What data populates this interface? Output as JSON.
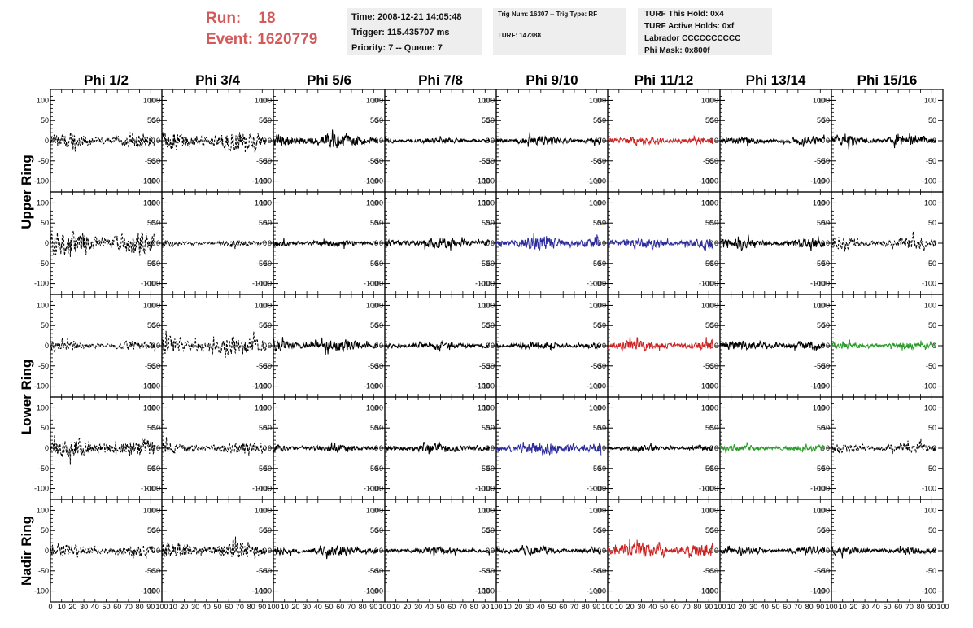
{
  "header": {
    "run_label": "Run:",
    "run_value": "18",
    "event_label": "Event:",
    "event_value": "1620779",
    "run_color": "#d45a5a"
  },
  "info": {
    "time": "Time: 2008-12-21 14:05:48",
    "trigger": "Trigger: 115.435707 ms",
    "priority": "Priority: 7 -- Queue: 7",
    "trig_num": "Trig Num: 16307 -- Trig Type: RF",
    "turf": "TURF: 147388",
    "turf_hold": "TURF This Hold: 0x4",
    "turf_active": "TURF Active Holds: 0xf",
    "labrador": "Labrador CCCCCCCCCC",
    "phi_mask": "Phi Mask: 0x800f"
  },
  "chart_data": {
    "type": "line",
    "columns": [
      "Phi 1/2",
      "Phi 3/4",
      "Phi 5/6",
      "Phi 7/8",
      "Phi 9/10",
      "Phi 11/12",
      "Phi 13/14",
      "Phi 15/16"
    ],
    "row_labels": [
      {
        "label": "Upper Ring",
        "rows": [
          0,
          1
        ]
      },
      {
        "label": "Lower Ring",
        "rows": [
          2,
          3
        ]
      },
      {
        "label": "Nadir Ring",
        "rows": [
          4
        ]
      }
    ],
    "ylim": [
      -115,
      115
    ],
    "xlim": [
      0,
      100
    ],
    "y_ticks": [
      -100,
      -50,
      0,
      50,
      100
    ],
    "x_ticks_first": [
      0,
      10,
      20,
      30,
      40,
      50,
      60,
      70,
      80,
      90,
      100
    ],
    "x_ticks_other": [
      10,
      20,
      30,
      40,
      50,
      60,
      70,
      80,
      90,
      100
    ],
    "waveform_x_range": [
      0,
      94
    ],
    "samples": 260,
    "colors": {
      "black": "#000000",
      "red": "#cc2222",
      "blue": "#2a2a9a",
      "green": "#2a9a2a"
    },
    "panels": [
      [
        {
          "c": "black",
          "s": "dashed",
          "a": 24
        },
        {
          "c": "black",
          "s": "dashed",
          "a": 32
        },
        {
          "c": "black",
          "s": "solid",
          "a": 24
        },
        {
          "c": "black",
          "s": "solid",
          "a": 10
        },
        {
          "c": "black",
          "s": "solid",
          "a": 15
        },
        {
          "c": "red",
          "s": "solid",
          "a": 13
        },
        {
          "c": "black",
          "s": "solid",
          "a": 13
        },
        {
          "c": "black",
          "s": "solid",
          "a": 16
        }
      ],
      [
        {
          "c": "black",
          "s": "dashed",
          "a": 40
        },
        {
          "c": "black",
          "s": "dashed",
          "a": 10
        },
        {
          "c": "black",
          "s": "solid",
          "a": 12
        },
        {
          "c": "black",
          "s": "solid",
          "a": 18
        },
        {
          "c": "blue",
          "s": "solid",
          "a": 22
        },
        {
          "c": "blue",
          "s": "solid",
          "a": 18
        },
        {
          "c": "black",
          "s": "solid",
          "a": 16
        },
        {
          "c": "black",
          "s": "dashed",
          "a": 20
        }
      ],
      [
        {
          "c": "black",
          "s": "dashed",
          "a": 15
        },
        {
          "c": "black",
          "s": "dashed",
          "a": 30
        },
        {
          "c": "black",
          "s": "solid",
          "a": 20
        },
        {
          "c": "black",
          "s": "solid",
          "a": 13
        },
        {
          "c": "black",
          "s": "solid",
          "a": 13
        },
        {
          "c": "red",
          "s": "solid",
          "a": 18
        },
        {
          "c": "black",
          "s": "solid",
          "a": 15
        },
        {
          "c": "green",
          "s": "solid",
          "a": 12
        }
      ],
      [
        {
          "c": "black",
          "s": "dashed",
          "a": 32
        },
        {
          "c": "black",
          "s": "dashed",
          "a": 18
        },
        {
          "c": "black",
          "s": "solid",
          "a": 12
        },
        {
          "c": "black",
          "s": "solid",
          "a": 15
        },
        {
          "c": "blue",
          "s": "solid",
          "a": 22
        },
        {
          "c": "black",
          "s": "solid",
          "a": 10
        },
        {
          "c": "green",
          "s": "solid",
          "a": 11
        },
        {
          "c": "black",
          "s": "dashed",
          "a": 16
        }
      ],
      [
        {
          "c": "black",
          "s": "dashed",
          "a": 20
        },
        {
          "c": "black",
          "s": "dashed",
          "a": 28
        },
        {
          "c": "black",
          "s": "solid",
          "a": 17
        },
        {
          "c": "black",
          "s": "solid",
          "a": 12
        },
        {
          "c": "black",
          "s": "solid",
          "a": 13
        },
        {
          "c": "red",
          "s": "solid",
          "a": 26
        },
        {
          "c": "black",
          "s": "solid",
          "a": 12
        },
        {
          "c": "black",
          "s": "solid",
          "a": 12
        }
      ]
    ]
  }
}
